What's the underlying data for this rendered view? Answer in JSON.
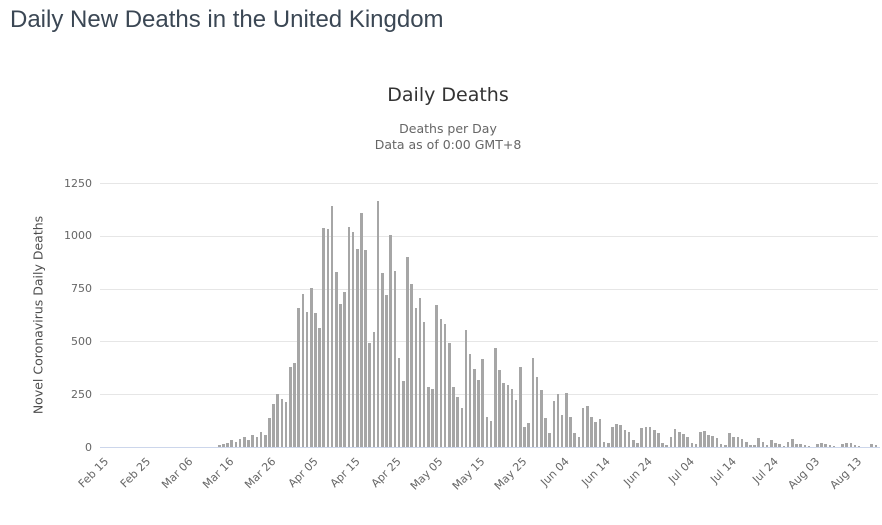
{
  "page": {
    "title": "Daily New Deaths in the United Kingdom"
  },
  "chart": {
    "title": "Daily Deaths",
    "subtitle_line1": "Deaths per Day",
    "subtitle_line2": "Data as of 0:00 GMT+8",
    "y_axis_title": "Novel Coronavirus Daily Deaths"
  },
  "colors": {
    "bar": "#a6a6a6",
    "gridline": "#e6e6e6",
    "axis_line": "#ccd6eb",
    "page_title": "#3b4754",
    "chart_title": "#333333",
    "subtitle": "#666666"
  },
  "chart_data": {
    "type": "bar",
    "title": "Daily Deaths",
    "subtitle": [
      "Deaths per Day",
      "Data as of 0:00 GMT+8"
    ],
    "xlabel": "",
    "ylabel": "Novel Coronavirus Daily Deaths",
    "ylim": [
      0,
      1250
    ],
    "y_ticks": [
      0,
      250,
      500,
      750,
      1000,
      1250
    ],
    "grid": "horizontal",
    "legend": "none",
    "x_tick_interval": 10,
    "x_tick_labels": [
      "Feb 15",
      "Feb 25",
      "Mar 06",
      "Mar 16",
      "Mar 26",
      "Apr 05",
      "Apr 15",
      "Apr 25",
      "May 05",
      "May 15",
      "May 25",
      "Jun 04",
      "Jun 14",
      "Jun 24",
      "Jul 04",
      "Jul 14",
      "Jul 24",
      "Aug 03",
      "Aug 13"
    ],
    "bar_color": "#a6a6a6",
    "categories": [
      "Feb 15",
      "Feb 16",
      "Feb 17",
      "Feb 18",
      "Feb 19",
      "Feb 20",
      "Feb 21",
      "Feb 22",
      "Feb 23",
      "Feb 24",
      "Feb 25",
      "Feb 26",
      "Feb 27",
      "Feb 28",
      "Feb 29",
      "Mar 01",
      "Mar 02",
      "Mar 03",
      "Mar 04",
      "Mar 05",
      "Mar 06",
      "Mar 07",
      "Mar 08",
      "Mar 09",
      "Mar 10",
      "Mar 11",
      "Mar 12",
      "Mar 13",
      "Mar 14",
      "Mar 15",
      "Mar 16",
      "Mar 17",
      "Mar 18",
      "Mar 19",
      "Mar 20",
      "Mar 21",
      "Mar 22",
      "Mar 23",
      "Mar 24",
      "Mar 25",
      "Mar 26",
      "Mar 27",
      "Mar 28",
      "Mar 29",
      "Mar 30",
      "Mar 31",
      "Apr 01",
      "Apr 02",
      "Apr 03",
      "Apr 04",
      "Apr 05",
      "Apr 06",
      "Apr 07",
      "Apr 08",
      "Apr 09",
      "Apr 10",
      "Apr 11",
      "Apr 12",
      "Apr 13",
      "Apr 14",
      "Apr 15",
      "Apr 16",
      "Apr 17",
      "Apr 18",
      "Apr 19",
      "Apr 20",
      "Apr 21",
      "Apr 22",
      "Apr 23",
      "Apr 24",
      "Apr 25",
      "Apr 26",
      "Apr 27",
      "Apr 28",
      "Apr 29",
      "Apr 30",
      "May 01",
      "May 02",
      "May 03",
      "May 04",
      "May 05",
      "May 06",
      "May 07",
      "May 08",
      "May 09",
      "May 10",
      "May 11",
      "May 12",
      "May 13",
      "May 14",
      "May 15",
      "May 16",
      "May 17",
      "May 18",
      "May 19",
      "May 20",
      "May 21",
      "May 22",
      "May 23",
      "May 24",
      "May 25",
      "May 26",
      "May 27",
      "May 28",
      "May 29",
      "May 30",
      "May 31",
      "Jun 01",
      "Jun 02",
      "Jun 03",
      "Jun 04",
      "Jun 05",
      "Jun 06",
      "Jun 07",
      "Jun 08",
      "Jun 09",
      "Jun 10",
      "Jun 11",
      "Jun 12",
      "Jun 13",
      "Jun 14",
      "Jun 15",
      "Jun 16",
      "Jun 17",
      "Jun 18",
      "Jun 19",
      "Jun 20",
      "Jun 21",
      "Jun 22",
      "Jun 23",
      "Jun 24",
      "Jun 25",
      "Jun 26",
      "Jun 27",
      "Jun 28",
      "Jun 29",
      "Jun 30",
      "Jul 01",
      "Jul 02",
      "Jul 03",
      "Jul 04",
      "Jul 05",
      "Jul 06",
      "Jul 07",
      "Jul 08",
      "Jul 09",
      "Jul 10",
      "Jul 11",
      "Jul 12",
      "Jul 13",
      "Jul 14",
      "Jul 15",
      "Jul 16",
      "Jul 17",
      "Jul 18",
      "Jul 19",
      "Jul 20",
      "Jul 21",
      "Jul 22",
      "Jul 23",
      "Jul 24",
      "Jul 25",
      "Jul 26",
      "Jul 27",
      "Jul 28",
      "Jul 29",
      "Jul 30",
      "Jul 31",
      "Aug 01",
      "Aug 02",
      "Aug 03",
      "Aug 04",
      "Aug 05",
      "Aug 06",
      "Aug 07",
      "Aug 08",
      "Aug 09",
      "Aug 10",
      "Aug 11",
      "Aug 12",
      "Aug 13",
      "Aug 14",
      "Aug 15",
      "Aug 16",
      "Aug 17",
      "Aug 18"
    ],
    "values": [
      0,
      0,
      0,
      0,
      0,
      0,
      0,
      0,
      0,
      0,
      0,
      0,
      0,
      0,
      0,
      0,
      0,
      0,
      0,
      1,
      1,
      0,
      2,
      1,
      2,
      2,
      1,
      2,
      10,
      14,
      20,
      33,
      25,
      40,
      47,
      33,
      56,
      48,
      70,
      55,
      137,
      203,
      250,
      226,
      215,
      380,
      396,
      656,
      723,
      641,
      751,
      633,
      565,
      1035,
      1030,
      1141,
      830,
      675,
      735,
      1040,
      1016,
      937,
      1106,
      935,
      491,
      543,
      1166,
      822,
      720,
      1004,
      833,
      420,
      312,
      901,
      770,
      656,
      704,
      593,
      286,
      275,
      672,
      604,
      581,
      491,
      286,
      238,
      183,
      554,
      439,
      368,
      317,
      415,
      144,
      121,
      467,
      363,
      301,
      293,
      273,
      222,
      380,
      96,
      112,
      420,
      333,
      270,
      136,
      65,
      220,
      249,
      151,
      254,
      144,
      65,
      49,
      183,
      194,
      144,
      120,
      131,
      25,
      17,
      96,
      109,
      104,
      80,
      73,
      33,
      17,
      88,
      96,
      96,
      80,
      65,
      17,
      9,
      49,
      85,
      73,
      60,
      49,
      21,
      14,
      73,
      77,
      57,
      52,
      41,
      14,
      9,
      65,
      49,
      46,
      36,
      25,
      9,
      8,
      41,
      25,
      9,
      33,
      17,
      13,
      7,
      22,
      36,
      12,
      13,
      9,
      3,
      2,
      14,
      17,
      14,
      9,
      3,
      2,
      13,
      17,
      19,
      9,
      3,
      2,
      2,
      14,
      11
    ]
  }
}
